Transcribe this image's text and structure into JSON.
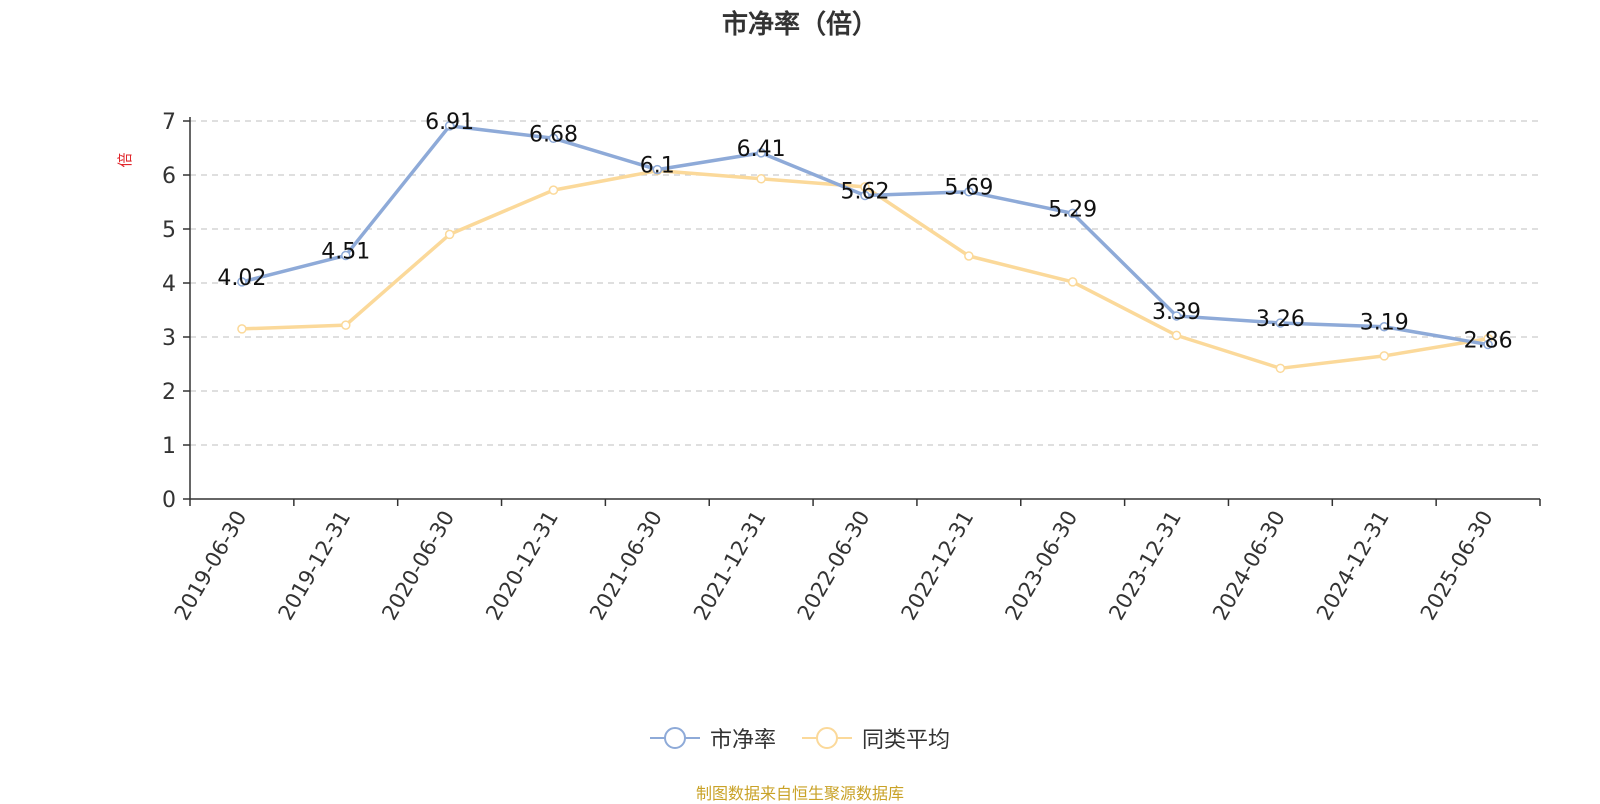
{
  "chart_data": {
    "type": "line",
    "title": "市净率（倍）",
    "ylabel": "倍",
    "categories": [
      "2019-06-30",
      "2019-12-31",
      "2020-06-30",
      "2020-12-31",
      "2021-06-30",
      "2021-12-31",
      "2022-06-30",
      "2022-12-31",
      "2023-06-30",
      "2023-12-31",
      "2024-06-30",
      "2024-12-31",
      "2025-06-30"
    ],
    "ylim": [
      0,
      7
    ],
    "yticks": [
      0,
      1,
      2,
      3,
      4,
      5,
      6,
      7
    ],
    "grid": true,
    "legend_position": "bottom",
    "series": [
      {
        "name": "市净率",
        "color": "#8eaad8",
        "values": [
          4.02,
          4.51,
          6.91,
          6.68,
          6.1,
          6.41,
          5.62,
          5.69,
          5.29,
          3.39,
          3.26,
          3.19,
          2.86
        ],
        "value_labels": [
          "4.02",
          "4.51",
          "6.91",
          "6.68",
          "6.1",
          "6.41",
          "5.62",
          "5.69",
          "5.29",
          "3.39",
          "3.26",
          "3.19",
          "2.86"
        ]
      },
      {
        "name": "同类平均",
        "color": "#fbd99a",
        "values": [
          3.15,
          3.22,
          4.9,
          5.72,
          6.08,
          5.93,
          5.78,
          4.5,
          4.02,
          3.03,
          2.42,
          2.65,
          2.97
        ]
      }
    ]
  },
  "source_note": "制图数据来自恒生聚源数据库"
}
